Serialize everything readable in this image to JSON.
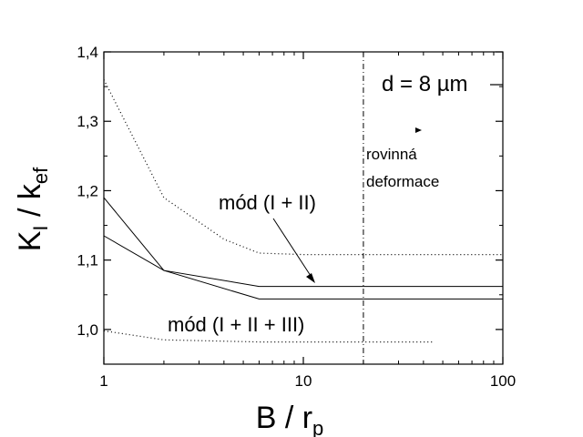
{
  "chart_data": {
    "type": "line",
    "xlabel_main": "B",
    "xlabel_sep": " / ",
    "xlabel_var": "r",
    "xlabel_sub": "p",
    "ylabel_k1": "K",
    "ylabel_k1_sub": "I",
    "ylabel_sep": " / ",
    "ylabel_k2": "k",
    "ylabel_k2_sub": "ef",
    "x_scale": "log",
    "xlim": [
      1,
      100
    ],
    "ylim": [
      0.95,
      1.4
    ],
    "x_ticks": [
      {
        "value": 1,
        "label": "1"
      },
      {
        "value": 10,
        "label": "10"
      },
      {
        "value": 100,
        "label": "100"
      }
    ],
    "y_ticks": [
      {
        "value": 1.0,
        "label": "1,0"
      },
      {
        "value": 1.1,
        "label": "1,1"
      },
      {
        "value": 1.2,
        "label": "1,2"
      },
      {
        "value": 1.3,
        "label": "1,3"
      },
      {
        "value": 1.4,
        "label": "1,4"
      }
    ],
    "vertical_line_x": 20,
    "series": [
      {
        "style": "dotted",
        "x": [
          1,
          2,
          4,
          6,
          10,
          20,
          40,
          100
        ],
        "y": [
          1.36,
          1.19,
          1.13,
          1.11,
          1.108,
          1.108,
          1.108,
          1.108
        ]
      },
      {
        "style": "solid",
        "x": [
          1,
          2,
          6,
          100
        ],
        "y": [
          1.19,
          1.085,
          1.062,
          1.062
        ]
      },
      {
        "style": "solid",
        "x": [
          1,
          2,
          6,
          100
        ],
        "y": [
          1.135,
          1.085,
          1.044,
          1.044
        ]
      },
      {
        "style": "dotted",
        "x": [
          1,
          2,
          6,
          10,
          20,
          45
        ],
        "y": [
          0.998,
          0.985,
          0.982,
          0.982,
          0.982,
          0.982
        ]
      }
    ],
    "annotations": {
      "thickness": "d = 8 µm",
      "plane_strain_line1": "rovinná",
      "plane_strain_line2": "deformace",
      "mode12": "mód (I + II)",
      "mode123": "mód (I + II + III)"
    }
  }
}
